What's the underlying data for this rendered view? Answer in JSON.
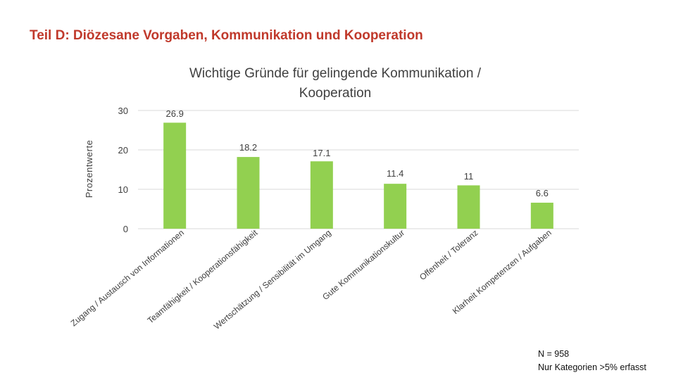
{
  "slide_title": "Teil D: Diözesane Vorgaben, Kommunikation und Kooperation",
  "colors": {
    "title": "#c0392b",
    "bar": "#92d050",
    "grid": "#d9d9d9",
    "text": "#404040"
  },
  "chart_data": {
    "type": "bar",
    "title": "Wichtige Gründe für gelingende Kommunikation / Kooperation",
    "title_lines": [
      "Wichtige Gründe für gelingende Kommunikation /",
      "Kooperation"
    ],
    "ylabel": "Prozentwerte",
    "xlabel": "",
    "ylim": [
      0,
      30
    ],
    "yticks": [
      0,
      10,
      20,
      30
    ],
    "grid": true,
    "categories": [
      "Zugang / Austausch von Informationen",
      "Teamfähigkeit / Kooperationsfähigkeit",
      "Wertschätzung / Sensibilität im Umgang",
      "Gute Kommunikationskultur",
      "Offenheit / Toleranz",
      "Klarheit Kompetenzen / Aufgaben"
    ],
    "values": [
      26.9,
      18.2,
      17.1,
      11.4,
      11,
      6.6
    ],
    "value_labels": [
      "26.9",
      "18.2",
      "17.1",
      "11.4",
      "11",
      "6.6"
    ]
  },
  "footnote": {
    "n": "N = 958",
    "note": "Nur Kategorien >5% erfasst"
  }
}
